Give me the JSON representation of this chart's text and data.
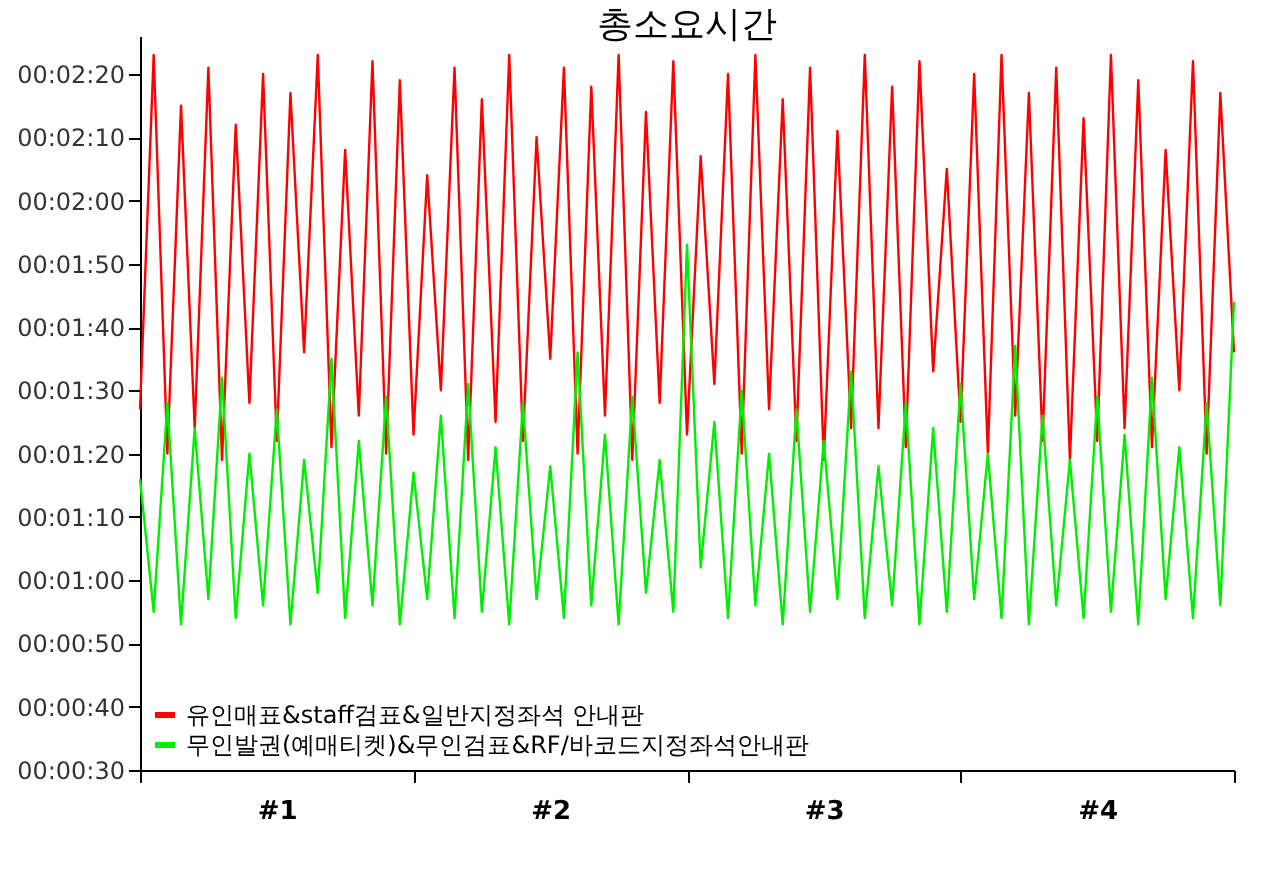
{
  "chart_data": {
    "type": "line",
    "title": "총소요시간",
    "x": [
      0,
      0.05,
      0.1,
      0.15,
      0.2,
      0.25,
      0.3,
      0.35,
      0.4,
      0.45,
      0.5,
      0.55,
      0.6,
      0.65,
      0.7,
      0.75,
      0.8,
      0.85,
      0.9,
      0.95,
      1,
      1.05,
      1.1,
      1.15,
      1.2,
      1.25,
      1.3,
      1.35,
      1.4,
      1.45,
      1.5,
      1.55,
      1.6,
      1.65,
      1.7,
      1.75,
      1.8,
      1.85,
      1.9,
      1.95,
      2,
      2.05,
      2.1,
      2.15,
      2.2,
      2.25,
      2.3,
      2.35,
      2.4,
      2.45,
      2.5,
      2.55,
      2.6,
      2.65,
      2.7,
      2.75,
      2.8,
      2.85,
      2.9,
      2.95,
      3,
      3.05,
      3.1,
      3.15,
      3.2,
      3.25,
      3.3,
      3.35,
      3.4,
      3.45,
      3.5,
      3.55,
      3.6,
      3.65,
      3.7,
      3.75,
      3.8,
      3.85,
      3.9,
      3.95,
      4
    ],
    "series": [
      {
        "name": "유인매표&staff검표&일반지정좌석 안내판",
        "color": "#ff0000",
        "values": [
          87,
          143,
          80,
          135,
          84,
          141,
          79,
          132,
          88,
          140,
          82,
          137,
          96,
          143,
          81,
          128,
          86,
          142,
          80,
          139,
          83,
          124,
          90,
          141,
          79,
          136,
          85,
          143,
          82,
          130,
          95,
          141,
          80,
          138,
          86,
          143,
          79,
          134,
          88,
          142,
          83,
          127,
          91,
          140,
          80,
          143,
          87,
          136,
          82,
          141,
          79,
          131,
          84,
          143,
          84,
          138,
          81,
          142,
          93,
          125,
          85,
          140,
          80,
          143,
          86,
          137,
          82,
          141,
          79,
          133,
          82,
          143,
          84,
          139,
          81,
          128,
          90,
          142,
          80,
          137,
          96
        ]
      },
      {
        "name": "무인발권(예매티켓)&무인검표&RF/바코드지정좌석안내판",
        "color": "#00ee00",
        "values": [
          76,
          55,
          88,
          53,
          84,
          57,
          92,
          54,
          80,
          56,
          87,
          53,
          79,
          58,
          95,
          54,
          82,
          56,
          89,
          53,
          77,
          57,
          86,
          54,
          91,
          55,
          81,
          53,
          88,
          57,
          78,
          54,
          96,
          56,
          83,
          53,
          89,
          58,
          79,
          55,
          113,
          62,
          85,
          54,
          90,
          56,
          80,
          53,
          87,
          55,
          82,
          57,
          93,
          54,
          78,
          56,
          88,
          53,
          84,
          55,
          91,
          57,
          80,
          54,
          97,
          53,
          86,
          56,
          79,
          54,
          89,
          55,
          83,
          53,
          92,
          57,
          81,
          54,
          88,
          56,
          104
        ]
      }
    ],
    "xlim": [
      0,
      4
    ],
    "xticks": [
      {
        "value": 0,
        "label": null
      },
      {
        "value": 0.5,
        "label": "#1"
      },
      {
        "value": 1,
        "label": null
      },
      {
        "value": 1.5,
        "label": "#2"
      },
      {
        "value": 2,
        "label": null
      },
      {
        "value": 2.5,
        "label": "#3"
      },
      {
        "value": 3,
        "label": null
      },
      {
        "value": 3.5,
        "label": "#4"
      },
      {
        "value": 4,
        "label": null
      }
    ],
    "ylim": [
      30,
      146
    ],
    "yticks": [
      {
        "value": 30,
        "label": "00:00:30"
      },
      {
        "value": 40,
        "label": "00:00:40"
      },
      {
        "value": 50,
        "label": "00:00:50"
      },
      {
        "value": 60,
        "label": "00:01:00"
      },
      {
        "value": 70,
        "label": "00:01:10"
      },
      {
        "value": 80,
        "label": "00:01:20"
      },
      {
        "value": 90,
        "label": "00:01:30"
      },
      {
        "value": 100,
        "label": "00:01:40"
      },
      {
        "value": 110,
        "label": "00:01:50"
      },
      {
        "value": 120,
        "label": "00:02:00"
      },
      {
        "value": 130,
        "label": "00:02:10"
      },
      {
        "value": 140,
        "label": "00:02:20"
      }
    ],
    "grid": false,
    "legend": "bottom left",
    "marker": "none",
    "line_style": "solid"
  }
}
